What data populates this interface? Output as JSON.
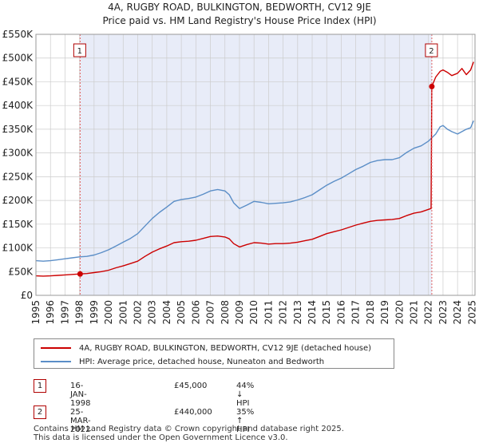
{
  "title_line1": "4A, RUGBY ROAD, BULKINGTON, BEDWORTH, CV12 9JE",
  "title_line2": "Price paid vs. HM Land Registry's House Price Index (HPI)",
  "colors": {
    "property": "#cc0000",
    "hpi": "#5b8ec7",
    "shade": "#e8ecf8",
    "grid": "#cccccc",
    "marker_line": "#e06060"
  },
  "legend": {
    "property_label": "4A, RUGBY ROAD, BULKINGTON, BEDWORTH, CV12 9JE (detached house)",
    "hpi_label": "HPI: Average price, detached house, Nuneaton and Bedworth"
  },
  "transactions": [
    {
      "num": "1",
      "date": "16-JAN-1998",
      "price": "£45,000",
      "hpi_change": "44% ↓ HPI"
    },
    {
      "num": "2",
      "date": "25-MAR-2022",
      "price": "£440,000",
      "hpi_change": "35% ↑ HPI"
    }
  ],
  "footer": {
    "line1": "Contains HM Land Registry data © Crown copyright and database right 2025.",
    "line2": "This data is licensed under the Open Government Licence v3.0."
  },
  "chart_data": {
    "type": "line",
    "xlim": [
      1995,
      2025.2
    ],
    "ylim": [
      0,
      550000
    ],
    "x_ticks": [
      1995,
      1996,
      1997,
      1998,
      1999,
      2000,
      2001,
      2002,
      2003,
      2004,
      2005,
      2006,
      2007,
      2008,
      2009,
      2010,
      2011,
      2012,
      2013,
      2014,
      2015,
      2016,
      2017,
      2018,
      2019,
      2020,
      2021,
      2022,
      2023,
      2024,
      2025
    ],
    "x_tick_labels": [
      "1995",
      "1996",
      "1997",
      "1998",
      "1999",
      "2000",
      "2001",
      "2002",
      "2003",
      "2004",
      "2005",
      "2006",
      "2007",
      "2008",
      "2009",
      "2010",
      "2011",
      "2012",
      "2013",
      "2014",
      "2015",
      "2016",
      "2017",
      "2018",
      "2019",
      "2020",
      "2021",
      "2022",
      "2023",
      "2024",
      "2025"
    ],
    "y_ticks": [
      0,
      50000,
      100000,
      150000,
      200000,
      250000,
      300000,
      350000,
      400000,
      450000,
      500000,
      550000
    ],
    "y_tick_labels": [
      "£0",
      "£50K",
      "£100K",
      "£150K",
      "£200K",
      "£250K",
      "£300K",
      "£350K",
      "£400K",
      "£450K",
      "£500K",
      "£550K"
    ],
    "shaded_range": [
      1998.04,
      2022.23
    ],
    "markers": [
      {
        "label": "1",
        "x": 1998.04,
        "y": 45000
      },
      {
        "label": "2",
        "x": 2022.23,
        "y": 440000
      }
    ],
    "series": [
      {
        "name": "HPI: Average price, detached house, Nuneaton and Bedworth",
        "color": "#5b8ec7",
        "x": [
          1995,
          1995.5,
          1996,
          1996.5,
          1997,
          1997.5,
          1998,
          1998.5,
          1999,
          1999.5,
          2000,
          2000.5,
          2001,
          2001.5,
          2002,
          2002.5,
          2003,
          2003.5,
          2004,
          2004.5,
          2005,
          2005.5,
          2006,
          2006.5,
          2007,
          2007.5,
          2008,
          2008.3,
          2008.6,
          2009,
          2009.5,
          2010,
          2010.5,
          2011,
          2011.5,
          2012,
          2012.5,
          2013,
          2013.5,
          2014,
          2014.5,
          2015,
          2015.5,
          2016,
          2016.5,
          2017,
          2017.5,
          2018,
          2018.5,
          2019,
          2019.5,
          2020,
          2020.5,
          2021,
          2021.5,
          2022,
          2022.5,
          2022.8,
          2023,
          2023.3,
          2023.6,
          2024,
          2024.3,
          2024.6,
          2024.9,
          2025.1
        ],
        "y": [
          73000,
          72000,
          73000,
          75000,
          77000,
          79000,
          81000,
          82000,
          85000,
          90000,
          96000,
          104000,
          112000,
          120000,
          130000,
          146000,
          162000,
          175000,
          186000,
          198000,
          202000,
          204000,
          207000,
          213000,
          220000,
          223000,
          220000,
          212000,
          195000,
          183000,
          190000,
          198000,
          196000,
          193000,
          194000,
          195000,
          197000,
          201000,
          206000,
          212000,
          222000,
          232000,
          240000,
          247000,
          256000,
          265000,
          272000,
          280000,
          284000,
          286000,
          286000,
          290000,
          301000,
          310000,
          315000,
          325000,
          340000,
          355000,
          358000,
          350000,
          345000,
          340000,
          345000,
          350000,
          353000,
          368000
        ]
      },
      {
        "name": "4A, RUGBY ROAD, BULKINGTON, BEDWORTH, CV12 9JE (detached house)",
        "color": "#cc0000",
        "x": [
          1995,
          1995.5,
          1996,
          1996.5,
          1997,
          1997.5,
          1998.04,
          1998.5,
          1999,
          1999.5,
          2000,
          2000.5,
          2001,
          2001.5,
          2002,
          2002.5,
          2003,
          2003.5,
          2004,
          2004.5,
          2005,
          2005.5,
          2006,
          2006.5,
          2007,
          2007.5,
          2008,
          2008.3,
          2008.6,
          2009,
          2009.5,
          2010,
          2010.5,
          2011,
          2011.5,
          2012,
          2012.5,
          2013,
          2013.5,
          2014,
          2014.5,
          2015,
          2015.5,
          2016,
          2016.5,
          2017,
          2017.5,
          2018,
          2018.5,
          2019,
          2019.5,
          2020,
          2020.5,
          2021,
          2021.5,
          2022.18,
          2022.23,
          2022.5,
          2022.8,
          2023,
          2023.3,
          2023.6,
          2024,
          2024.3,
          2024.6,
          2024.9,
          2025.1
        ],
        "y": [
          41000,
          40500,
          41000,
          42000,
          43000,
          44000,
          45000,
          46000,
          48000,
          50000,
          53000,
          58000,
          62000,
          67000,
          72000,
          82000,
          91000,
          98000,
          104000,
          111000,
          113000,
          114000,
          116000,
          120000,
          124000,
          125000,
          123000,
          119000,
          109000,
          102000,
          107000,
          111000,
          110000,
          108000,
          109000,
          109000,
          110000,
          112000,
          115000,
          118000,
          124000,
          130000,
          134000,
          138000,
          143000,
          148000,
          152000,
          156000,
          158000,
          159000,
          160000,
          162000,
          168000,
          173000,
          176000,
          183000,
          440000,
          460000,
          472000,
          475000,
          470000,
          463000,
          468000,
          478000,
          465000,
          475000,
          492000
        ]
      }
    ]
  }
}
